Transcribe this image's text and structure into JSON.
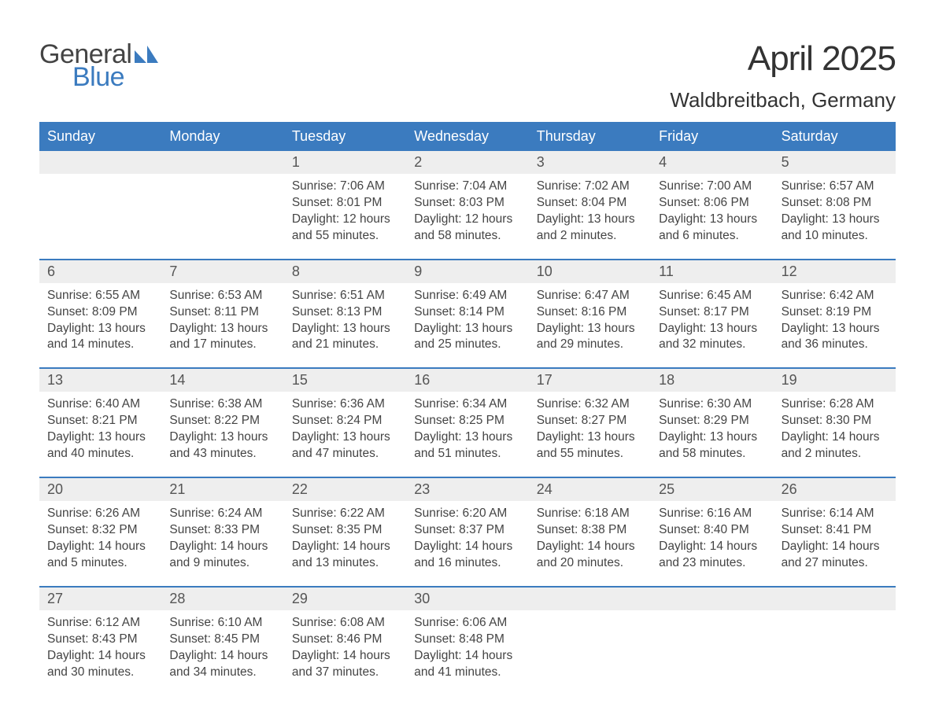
{
  "logo": {
    "text_general": "General",
    "text_blue": "Blue",
    "mark_color": "#3b7bbf"
  },
  "title": {
    "month": "April 2025",
    "location": "Waldbreitbach, Germany"
  },
  "colors": {
    "header_bg": "#3b7bbf",
    "header_text": "#ffffff",
    "numrow_bg": "#eeeeee",
    "week_divider": "#3b7bbf",
    "body_text": "#444444",
    "page_bg": "#ffffff"
  },
  "day_names": [
    "Sunday",
    "Monday",
    "Tuesday",
    "Wednesday",
    "Thursday",
    "Friday",
    "Saturday"
  ],
  "fonts": {
    "title_size_pt": 33,
    "location_size_pt": 20,
    "dayheader_size_pt": 14,
    "daynum_size_pt": 14,
    "body_size_pt": 12
  },
  "weeks": [
    [
      null,
      null,
      {
        "n": "1",
        "sunrise": "Sunrise: 7:06 AM",
        "sunset": "Sunset: 8:01 PM",
        "day1": "Daylight: 12 hours",
        "day2": "and 55 minutes."
      },
      {
        "n": "2",
        "sunrise": "Sunrise: 7:04 AM",
        "sunset": "Sunset: 8:03 PM",
        "day1": "Daylight: 12 hours",
        "day2": "and 58 minutes."
      },
      {
        "n": "3",
        "sunrise": "Sunrise: 7:02 AM",
        "sunset": "Sunset: 8:04 PM",
        "day1": "Daylight: 13 hours",
        "day2": "and 2 minutes."
      },
      {
        "n": "4",
        "sunrise": "Sunrise: 7:00 AM",
        "sunset": "Sunset: 8:06 PM",
        "day1": "Daylight: 13 hours",
        "day2": "and 6 minutes."
      },
      {
        "n": "5",
        "sunrise": "Sunrise: 6:57 AM",
        "sunset": "Sunset: 8:08 PM",
        "day1": "Daylight: 13 hours",
        "day2": "and 10 minutes."
      }
    ],
    [
      {
        "n": "6",
        "sunrise": "Sunrise: 6:55 AM",
        "sunset": "Sunset: 8:09 PM",
        "day1": "Daylight: 13 hours",
        "day2": "and 14 minutes."
      },
      {
        "n": "7",
        "sunrise": "Sunrise: 6:53 AM",
        "sunset": "Sunset: 8:11 PM",
        "day1": "Daylight: 13 hours",
        "day2": "and 17 minutes."
      },
      {
        "n": "8",
        "sunrise": "Sunrise: 6:51 AM",
        "sunset": "Sunset: 8:13 PM",
        "day1": "Daylight: 13 hours",
        "day2": "and 21 minutes."
      },
      {
        "n": "9",
        "sunrise": "Sunrise: 6:49 AM",
        "sunset": "Sunset: 8:14 PM",
        "day1": "Daylight: 13 hours",
        "day2": "and 25 minutes."
      },
      {
        "n": "10",
        "sunrise": "Sunrise: 6:47 AM",
        "sunset": "Sunset: 8:16 PM",
        "day1": "Daylight: 13 hours",
        "day2": "and 29 minutes."
      },
      {
        "n": "11",
        "sunrise": "Sunrise: 6:45 AM",
        "sunset": "Sunset: 8:17 PM",
        "day1": "Daylight: 13 hours",
        "day2": "and 32 minutes."
      },
      {
        "n": "12",
        "sunrise": "Sunrise: 6:42 AM",
        "sunset": "Sunset: 8:19 PM",
        "day1": "Daylight: 13 hours",
        "day2": "and 36 minutes."
      }
    ],
    [
      {
        "n": "13",
        "sunrise": "Sunrise: 6:40 AM",
        "sunset": "Sunset: 8:21 PM",
        "day1": "Daylight: 13 hours",
        "day2": "and 40 minutes."
      },
      {
        "n": "14",
        "sunrise": "Sunrise: 6:38 AM",
        "sunset": "Sunset: 8:22 PM",
        "day1": "Daylight: 13 hours",
        "day2": "and 43 minutes."
      },
      {
        "n": "15",
        "sunrise": "Sunrise: 6:36 AM",
        "sunset": "Sunset: 8:24 PM",
        "day1": "Daylight: 13 hours",
        "day2": "and 47 minutes."
      },
      {
        "n": "16",
        "sunrise": "Sunrise: 6:34 AM",
        "sunset": "Sunset: 8:25 PM",
        "day1": "Daylight: 13 hours",
        "day2": "and 51 minutes."
      },
      {
        "n": "17",
        "sunrise": "Sunrise: 6:32 AM",
        "sunset": "Sunset: 8:27 PM",
        "day1": "Daylight: 13 hours",
        "day2": "and 55 minutes."
      },
      {
        "n": "18",
        "sunrise": "Sunrise: 6:30 AM",
        "sunset": "Sunset: 8:29 PM",
        "day1": "Daylight: 13 hours",
        "day2": "and 58 minutes."
      },
      {
        "n": "19",
        "sunrise": "Sunrise: 6:28 AM",
        "sunset": "Sunset: 8:30 PM",
        "day1": "Daylight: 14 hours",
        "day2": "and 2 minutes."
      }
    ],
    [
      {
        "n": "20",
        "sunrise": "Sunrise: 6:26 AM",
        "sunset": "Sunset: 8:32 PM",
        "day1": "Daylight: 14 hours",
        "day2": "and 5 minutes."
      },
      {
        "n": "21",
        "sunrise": "Sunrise: 6:24 AM",
        "sunset": "Sunset: 8:33 PM",
        "day1": "Daylight: 14 hours",
        "day2": "and 9 minutes."
      },
      {
        "n": "22",
        "sunrise": "Sunrise: 6:22 AM",
        "sunset": "Sunset: 8:35 PM",
        "day1": "Daylight: 14 hours",
        "day2": "and 13 minutes."
      },
      {
        "n": "23",
        "sunrise": "Sunrise: 6:20 AM",
        "sunset": "Sunset: 8:37 PM",
        "day1": "Daylight: 14 hours",
        "day2": "and 16 minutes."
      },
      {
        "n": "24",
        "sunrise": "Sunrise: 6:18 AM",
        "sunset": "Sunset: 8:38 PM",
        "day1": "Daylight: 14 hours",
        "day2": "and 20 minutes."
      },
      {
        "n": "25",
        "sunrise": "Sunrise: 6:16 AM",
        "sunset": "Sunset: 8:40 PM",
        "day1": "Daylight: 14 hours",
        "day2": "and 23 minutes."
      },
      {
        "n": "26",
        "sunrise": "Sunrise: 6:14 AM",
        "sunset": "Sunset: 8:41 PM",
        "day1": "Daylight: 14 hours",
        "day2": "and 27 minutes."
      }
    ],
    [
      {
        "n": "27",
        "sunrise": "Sunrise: 6:12 AM",
        "sunset": "Sunset: 8:43 PM",
        "day1": "Daylight: 14 hours",
        "day2": "and 30 minutes."
      },
      {
        "n": "28",
        "sunrise": "Sunrise: 6:10 AM",
        "sunset": "Sunset: 8:45 PM",
        "day1": "Daylight: 14 hours",
        "day2": "and 34 minutes."
      },
      {
        "n": "29",
        "sunrise": "Sunrise: 6:08 AM",
        "sunset": "Sunset: 8:46 PM",
        "day1": "Daylight: 14 hours",
        "day2": "and 37 minutes."
      },
      {
        "n": "30",
        "sunrise": "Sunrise: 6:06 AM",
        "sunset": "Sunset: 8:48 PM",
        "day1": "Daylight: 14 hours",
        "day2": "and 41 minutes."
      },
      null,
      null,
      null
    ]
  ]
}
